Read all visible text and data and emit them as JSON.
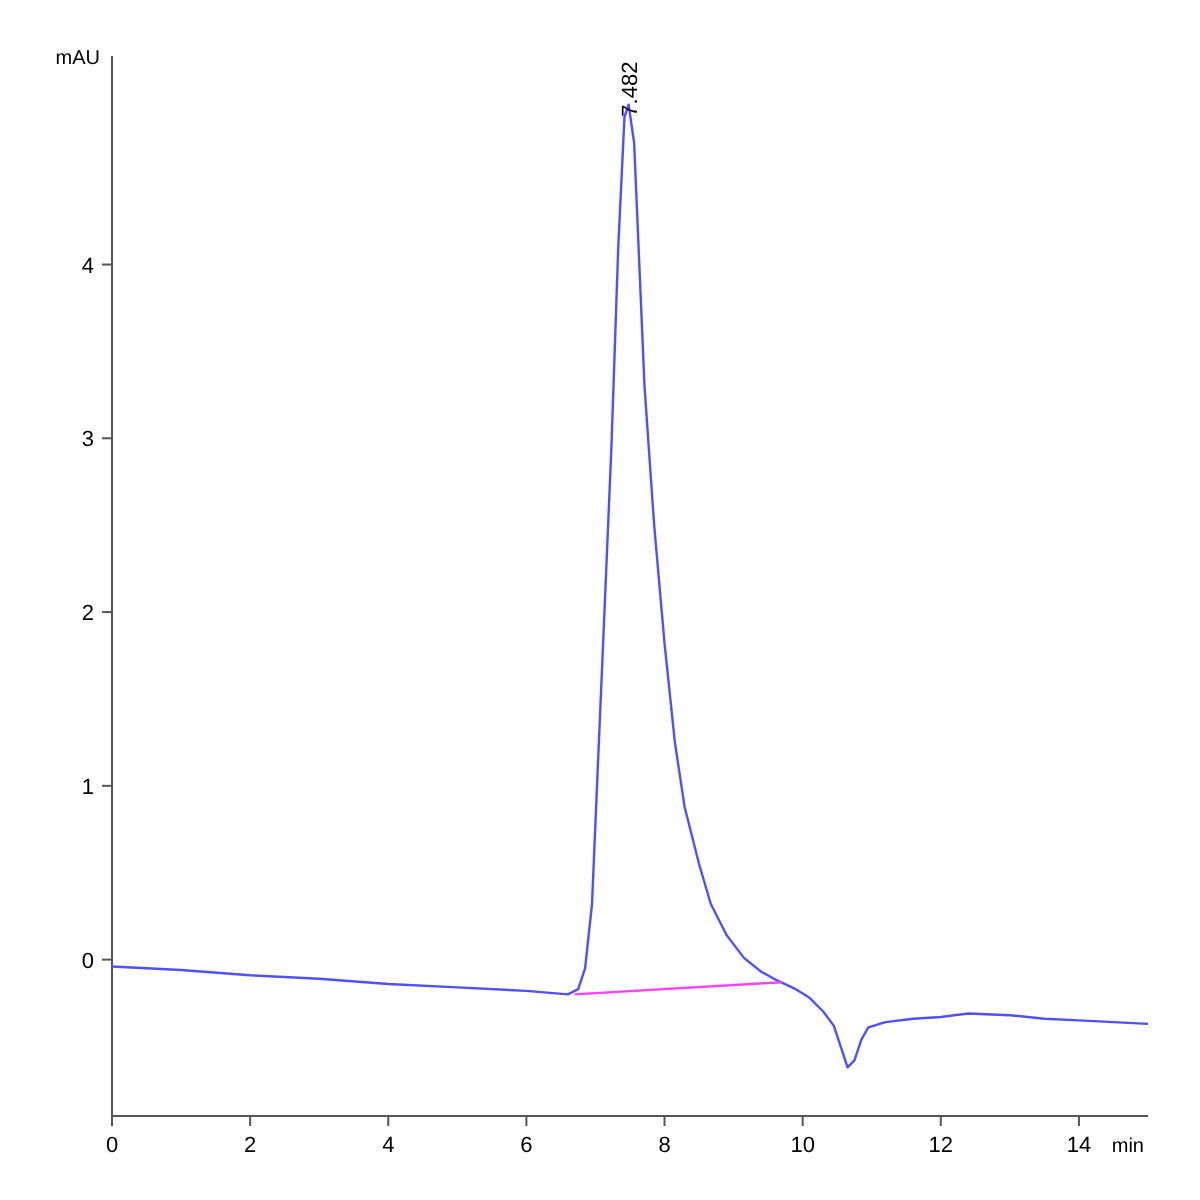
{
  "chart_data": {
    "type": "line",
    "xlabel": "min",
    "ylabel": "mAU",
    "xlim": [
      0,
      15
    ],
    "ylim": [
      -0.9,
      5.2
    ],
    "xticks": [
      0,
      2,
      4,
      6,
      8,
      10,
      12,
      14
    ],
    "yticks": [
      0,
      1,
      2,
      3,
      4
    ],
    "grid": false,
    "marker": "none",
    "line_style": "solid",
    "annotations": [
      {
        "text": "7.482",
        "x": 7.482,
        "y": 4.92
      }
    ],
    "series": [
      {
        "color": "#5050ff",
        "x": [
          0,
          1,
          2,
          3,
          4,
          5,
          6,
          6.6,
          6.75,
          6.85,
          6.95,
          7.03,
          7.13,
          7.23,
          7.33,
          7.42,
          7.48,
          7.56,
          7.71,
          7.85,
          8.0,
          8.15,
          8.29,
          8.5,
          8.67,
          8.9,
          9.15,
          9.4,
          9.63,
          9.9,
          10.1,
          10.3,
          10.45,
          10.55,
          10.65,
          10.75,
          10.85,
          10.95,
          11.2,
          11.6,
          12.0,
          12.4,
          13.0,
          13.5,
          14.0,
          14.5,
          15.0
        ],
        "values": [
          -0.04,
          -0.06,
          -0.09,
          -0.11,
          -0.14,
          -0.16,
          -0.18,
          -0.2,
          -0.17,
          -0.05,
          0.32,
          1.07,
          2.0,
          2.94,
          4.1,
          4.85,
          4.92,
          4.7,
          3.3,
          2.5,
          1.82,
          1.25,
          0.88,
          0.55,
          0.32,
          0.14,
          0.01,
          -0.07,
          -0.12,
          -0.17,
          -0.22,
          -0.3,
          -0.38,
          -0.5,
          -0.62,
          -0.58,
          -0.46,
          -0.39,
          -0.36,
          -0.34,
          -0.33,
          -0.31,
          -0.32,
          -0.34,
          -0.35,
          -0.36,
          -0.37
        ]
      },
      {
        "color": "#ff40ff",
        "x": [
          6.7,
          9.7
        ],
        "values": [
          -0.2,
          -0.13
        ]
      }
    ]
  }
}
